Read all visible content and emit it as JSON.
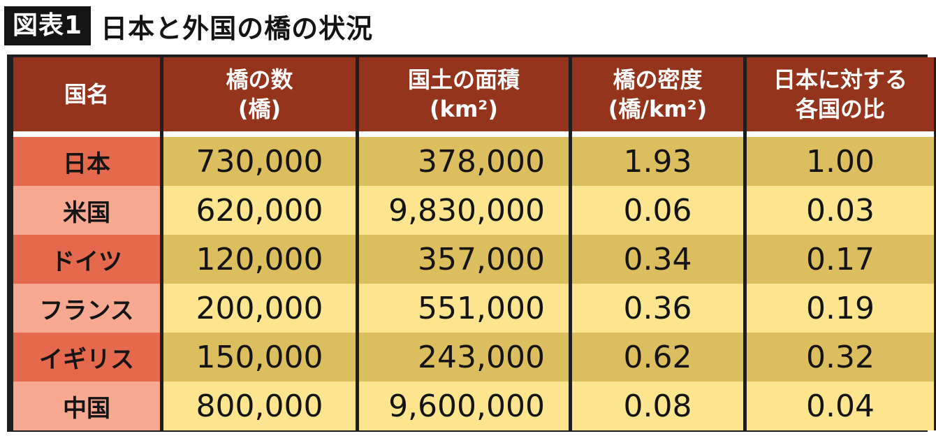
{
  "figure": {
    "label": "図表1",
    "title": "日本と外国の橋の状況"
  },
  "table": {
    "headers": [
      {
        "lines": [
          "国名"
        ]
      },
      {
        "lines": [
          "橋の数",
          "(橋)"
        ]
      },
      {
        "lines": [
          "国土の面積",
          "(km²)"
        ]
      },
      {
        "lines": [
          "橋の密度",
          "(橋/km²)"
        ]
      },
      {
        "lines": [
          "日本に対する",
          "各国の比"
        ]
      }
    ],
    "rows": [
      {
        "country": "日本",
        "bridges": "730,000",
        "area": "378,000",
        "density": "1.93",
        "ratio": "1.00"
      },
      {
        "country": "米国",
        "bridges": "620,000",
        "area": "9,830,000",
        "density": "0.06",
        "ratio": "0.03"
      },
      {
        "country": "ドイツ",
        "bridges": "120,000",
        "area": "357,000",
        "density": "0.34",
        "ratio": "0.17"
      },
      {
        "country": "フランス",
        "bridges": "200,000",
        "area": "551,000",
        "density": "0.36",
        "ratio": "0.19"
      },
      {
        "country": "イギリス",
        "bridges": "150,000",
        "area": "243,000",
        "density": "0.62",
        "ratio": "0.32"
      },
      {
        "country": "中国",
        "bridges": "800,000",
        "area": "9,600,000",
        "density": "0.08",
        "ratio": "0.04"
      }
    ]
  },
  "chart_data": {
    "type": "table",
    "title": "日本と外国の橋の状況",
    "columns": [
      "国名",
      "橋の数(橋)",
      "国土の面積(km²)",
      "橋の密度(橋/km²)",
      "日本に対する各国の比"
    ],
    "rows": [
      [
        "日本",
        730000,
        378000,
        1.93,
        1.0
      ],
      [
        "米国",
        620000,
        9830000,
        0.06,
        0.03
      ],
      [
        "ドイツ",
        120000,
        357000,
        0.34,
        0.17
      ],
      [
        "フランス",
        200000,
        551000,
        0.36,
        0.19
      ],
      [
        "イギリス",
        150000,
        243000,
        0.62,
        0.32
      ],
      [
        "中国",
        800000,
        9600000,
        0.08,
        0.04
      ]
    ]
  },
  "colors": {
    "header_bg": "#94341c",
    "country_odd": "#e4694d",
    "country_even": "#f7a891",
    "value_odd": "#dbbe5e",
    "value_even": "#fde48f",
    "border": "#1e1e1e"
  }
}
